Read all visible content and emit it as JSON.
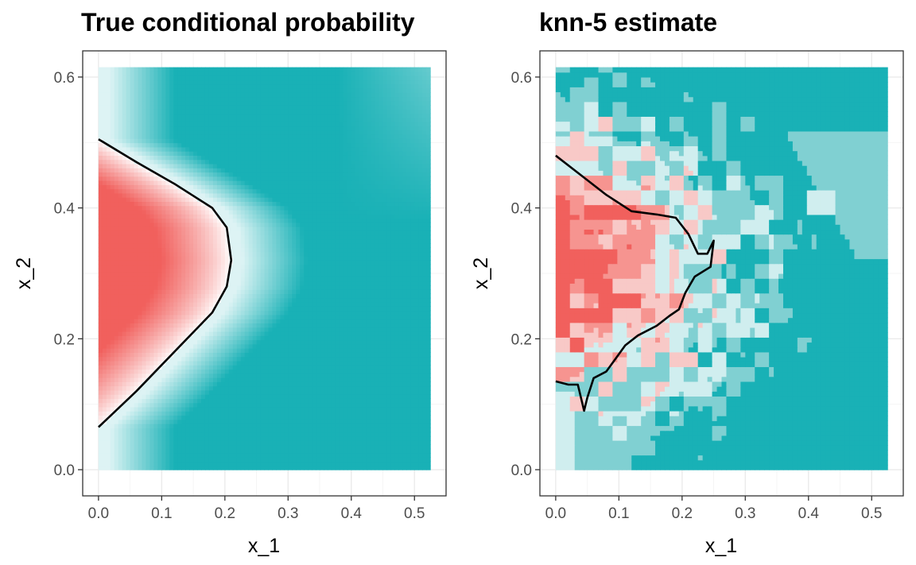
{
  "chart_data": [
    {
      "type": "heatmap",
      "title": "True conditional probability",
      "xlabel": "x_1",
      "ylabel": "x_2",
      "xlim": [
        -0.025,
        0.55
      ],
      "ylim": [
        -0.04,
        0.64
      ],
      "xticks": [
        "0.0",
        "0.1",
        "0.2",
        "0.3",
        "0.4",
        "0.5"
      ],
      "yticks": [
        "0.0",
        "0.2",
        "0.4",
        "0.6"
      ],
      "xtick_values": [
        0.0,
        0.1,
        0.2,
        0.3,
        0.4,
        0.5
      ],
      "ytick_values": [
        0.0,
        0.2,
        0.4,
        0.6
      ],
      "domain_x": [
        0.0,
        0.525
      ],
      "domain_y": [
        0.0,
        0.615
      ],
      "fill_low_color": "#19b1b6",
      "fill_mid_color": "#ffffff",
      "fill_high_color": "#f1605d",
      "decision_boundary": [
        [
          0.0,
          0.505
        ],
        [
          0.06,
          0.47
        ],
        [
          0.12,
          0.437
        ],
        [
          0.18,
          0.4
        ],
        [
          0.203,
          0.37
        ],
        [
          0.21,
          0.32
        ],
        [
          0.203,
          0.28
        ],
        [
          0.18,
          0.24
        ],
        [
          0.12,
          0.18
        ],
        [
          0.06,
          0.12
        ],
        [
          0.0,
          0.065
        ]
      ]
    },
    {
      "type": "heatmap",
      "title": "knn-5 estimate",
      "xlabel": "x_1",
      "ylabel": "x_2",
      "xlim": [
        -0.025,
        0.55
      ],
      "ylim": [
        -0.04,
        0.64
      ],
      "xticks": [
        "0.0",
        "0.1",
        "0.2",
        "0.3",
        "0.4",
        "0.5"
      ],
      "yticks": [
        "0.0",
        "0.2",
        "0.4",
        "0.6"
      ],
      "xtick_values": [
        0.0,
        0.1,
        0.2,
        0.3,
        0.4,
        0.5
      ],
      "ytick_values": [
        0.0,
        0.2,
        0.4,
        0.6
      ],
      "domain_x": [
        0.0,
        0.525
      ],
      "domain_y": [
        0.0,
        0.615
      ],
      "fill_levels": [
        0.0,
        0.2,
        0.4,
        0.6,
        0.8,
        1.0
      ],
      "fill_level_colors": [
        "#19b1b6",
        "#80d0d2",
        "#d0eeef",
        "#f8c9c7",
        "#f69490",
        "#f1605d"
      ],
      "decision_boundary": [
        [
          0.0,
          0.48
        ],
        [
          0.04,
          0.45
        ],
        [
          0.08,
          0.42
        ],
        [
          0.12,
          0.395
        ],
        [
          0.16,
          0.39
        ],
        [
          0.19,
          0.385
        ],
        [
          0.21,
          0.36
        ],
        [
          0.225,
          0.33
        ],
        [
          0.24,
          0.33
        ],
        [
          0.25,
          0.35
        ],
        [
          0.245,
          0.31
        ],
        [
          0.22,
          0.295
        ],
        [
          0.205,
          0.27
        ],
        [
          0.195,
          0.245
        ],
        [
          0.18,
          0.235
        ],
        [
          0.16,
          0.22
        ],
        [
          0.13,
          0.205
        ],
        [
          0.11,
          0.19
        ],
        [
          0.095,
          0.17
        ],
        [
          0.08,
          0.15
        ],
        [
          0.06,
          0.14
        ],
        [
          0.05,
          0.11
        ],
        [
          0.045,
          0.09
        ],
        [
          0.035,
          0.13
        ],
        [
          0.02,
          0.13
        ],
        [
          0.0,
          0.135
        ]
      ]
    }
  ]
}
